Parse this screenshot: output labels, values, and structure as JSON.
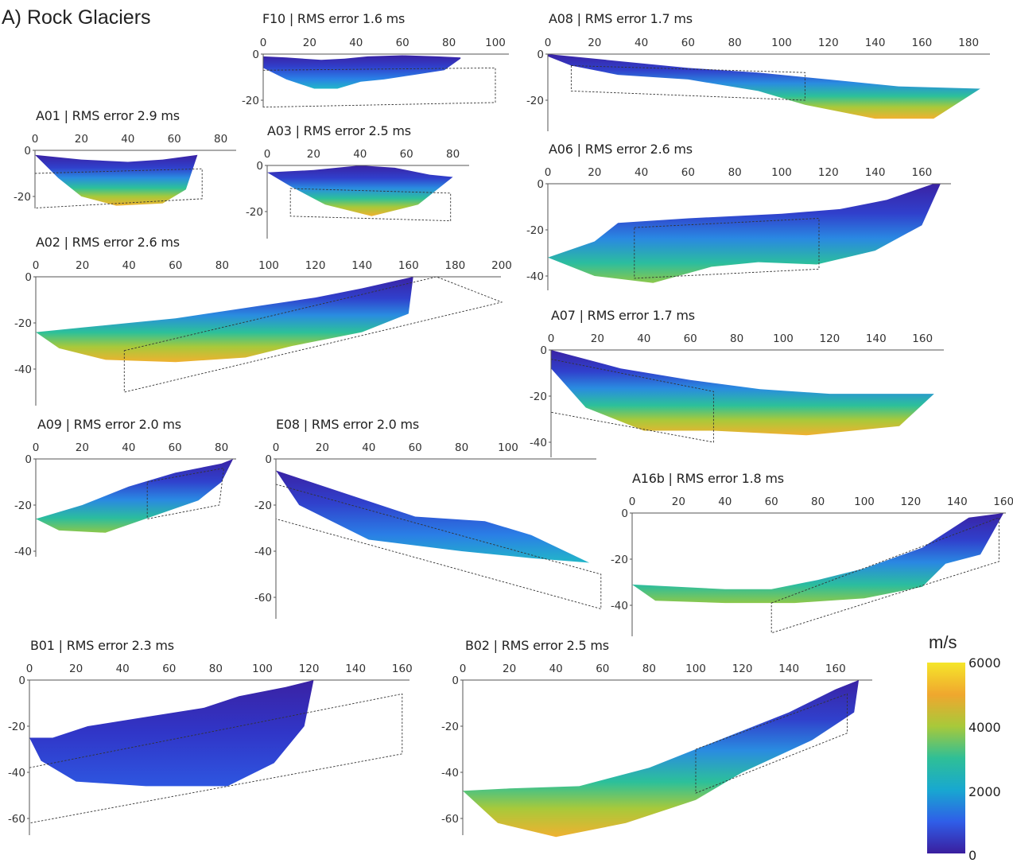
{
  "figure": {
    "title": "A) Rock Glaciers",
    "colorbar": {
      "unit": "m/s",
      "ticks": [
        "6000",
        "4000",
        "2000",
        "0"
      ],
      "min": 0,
      "max": 6000,
      "colormap": [
        "#3a1e9e",
        "#2f5ee8",
        "#18a8d0",
        "#2fbf96",
        "#a8c93a",
        "#f0a72e",
        "#f5e62a"
      ]
    }
  },
  "chart_data": [
    {
      "id": "F10",
      "type": "heatmap",
      "title": "F10 | RMS error 1.6 ms",
      "xticks": [
        "0",
        "20",
        "40",
        "60",
        "80",
        "100"
      ],
      "yticks": [
        "0",
        "-20"
      ],
      "xlim": [
        0,
        100
      ],
      "ylim": [
        -24,
        0
      ],
      "surface": [
        [
          0,
          -1
        ],
        [
          10,
          -1.5
        ],
        [
          25,
          -2.5
        ],
        [
          35,
          -2
        ],
        [
          45,
          -1
        ],
        [
          60,
          -0.5
        ],
        [
          75,
          -1
        ],
        [
          85,
          -1.5
        ]
      ],
      "bottom": [
        [
          0,
          -6
        ],
        [
          10,
          -11
        ],
        [
          22,
          -15
        ],
        [
          32,
          -15
        ],
        [
          42,
          -12
        ],
        [
          52,
          -11
        ],
        [
          65,
          -9
        ],
        [
          78,
          -7
        ],
        [
          85,
          -2
        ]
      ],
      "deep_fraction": 0.3,
      "box": [
        [
          0,
          -7
        ],
        [
          100,
          -6
        ],
        [
          100,
          -21
        ],
        [
          0,
          -23
        ]
      ]
    },
    {
      "id": "A08",
      "type": "heatmap",
      "title": "A08 | RMS error 1.7 ms",
      "xticks": [
        "0",
        "20",
        "40",
        "60",
        "80",
        "100",
        "120",
        "140",
        "160",
        "180"
      ],
      "yticks": [
        "0",
        "-20"
      ],
      "xlim": [
        0,
        190
      ],
      "ylim": [
        -30,
        0
      ],
      "surface": [
        [
          0,
          0
        ],
        [
          30,
          -3
        ],
        [
          60,
          -6
        ],
        [
          90,
          -8
        ],
        [
          120,
          -11
        ],
        [
          150,
          -14
        ],
        [
          185,
          -15
        ]
      ],
      "bottom": [
        [
          0,
          -1
        ],
        [
          10,
          -5
        ],
        [
          30,
          -9
        ],
        [
          60,
          -11
        ],
        [
          90,
          -16
        ],
        [
          110,
          -22
        ],
        [
          140,
          -28
        ],
        [
          165,
          -28
        ],
        [
          185,
          -15
        ]
      ],
      "deep_fraction": 0.8,
      "box": [
        [
          10,
          -5
        ],
        [
          110,
          -8
        ],
        [
          110,
          -20
        ],
        [
          10,
          -16
        ]
      ]
    },
    {
      "id": "A01",
      "type": "heatmap",
      "title": "A01 | RMS error 2.9 ms",
      "xticks": [
        "0",
        "20",
        "40",
        "60",
        "80"
      ],
      "yticks": [
        "0",
        "-20"
      ],
      "xlim": [
        0,
        80
      ],
      "ylim": [
        -24,
        0
      ],
      "surface": [
        [
          0,
          -2
        ],
        [
          20,
          -4
        ],
        [
          40,
          -5
        ],
        [
          55,
          -4
        ],
        [
          70,
          -2
        ]
      ],
      "bottom": [
        [
          0,
          -2
        ],
        [
          10,
          -12
        ],
        [
          20,
          -20
        ],
        [
          35,
          -24
        ],
        [
          55,
          -23
        ],
        [
          65,
          -17
        ],
        [
          70,
          -2
        ]
      ],
      "deep_fraction": 0.7,
      "box": [
        [
          0,
          -10
        ],
        [
          72,
          -8
        ],
        [
          72,
          -21
        ],
        [
          0,
          -25
        ]
      ]
    },
    {
      "id": "A03",
      "type": "heatmap",
      "title": "A03 | RMS error 2.5 ms",
      "xticks": [
        "0",
        "20",
        "40",
        "60",
        "80"
      ],
      "yticks": [
        "0",
        "-20"
      ],
      "xlim": [
        0,
        85
      ],
      "ylim": [
        -24,
        0
      ],
      "surface": [
        [
          0,
          -3
        ],
        [
          20,
          -2
        ],
        [
          40,
          0
        ],
        [
          55,
          -1
        ],
        [
          70,
          -4
        ],
        [
          80,
          -5
        ]
      ],
      "bottom": [
        [
          0,
          -3
        ],
        [
          10,
          -9
        ],
        [
          25,
          -17
        ],
        [
          45,
          -22
        ],
        [
          65,
          -17
        ],
        [
          80,
          -5
        ]
      ],
      "deep_fraction": 0.7,
      "box": [
        [
          10,
          -10
        ],
        [
          79,
          -12
        ],
        [
          79,
          -24
        ],
        [
          10,
          -22
        ]
      ]
    },
    {
      "id": "A06",
      "type": "heatmap",
      "title": "A06 | RMS error 2.6 ms",
      "xticks": [
        "0",
        "20",
        "40",
        "60",
        "80",
        "100",
        "120",
        "140",
        "160"
      ],
      "yticks": [
        "0",
        "-20",
        "-40"
      ],
      "xlim": [
        0,
        175
      ],
      "ylim": [
        -45,
        0
      ],
      "surface": [
        [
          0,
          -32
        ],
        [
          20,
          -25
        ],
        [
          30,
          -17
        ],
        [
          60,
          -15
        ],
        [
          100,
          -13
        ],
        [
          125,
          -11
        ],
        [
          145,
          -7
        ],
        [
          165,
          0
        ]
      ],
      "bottom": [
        [
          0,
          -32
        ],
        [
          20,
          -40
        ],
        [
          45,
          -43
        ],
        [
          70,
          -36
        ],
        [
          90,
          -34
        ],
        [
          115,
          -35
        ],
        [
          140,
          -29
        ],
        [
          160,
          -18
        ],
        [
          168,
          0
        ]
      ],
      "deep_fraction": 0.6,
      "box": [
        [
          37,
          -19
        ],
        [
          116,
          -15
        ],
        [
          116,
          -37
        ],
        [
          37,
          -41
        ]
      ]
    },
    {
      "id": "A02",
      "type": "heatmap",
      "title": "A02 | RMS error 2.6 ms",
      "xticks": [
        "0",
        "20",
        "40",
        "60",
        "80",
        "100",
        "120",
        "140",
        "160",
        "180",
        "200"
      ],
      "yticks": [
        "0",
        "-20",
        "-40"
      ],
      "xlim": [
        0,
        200
      ],
      "ylim": [
        -50,
        0
      ],
      "surface": [
        [
          0,
          -24
        ],
        [
          20,
          -22
        ],
        [
          40,
          -20
        ],
        [
          60,
          -18
        ],
        [
          80,
          -15
        ],
        [
          100,
          -12
        ],
        [
          120,
          -9
        ],
        [
          140,
          -5
        ],
        [
          162,
          0
        ]
      ],
      "bottom": [
        [
          0,
          -24
        ],
        [
          10,
          -31
        ],
        [
          30,
          -36
        ],
        [
          60,
          -37
        ],
        [
          90,
          -35
        ],
        [
          110,
          -30
        ],
        [
          140,
          -24
        ],
        [
          160,
          -16
        ],
        [
          162,
          0
        ]
      ],
      "deep_fraction": 0.7,
      "box": [
        [
          38,
          -32
        ],
        [
          172,
          0
        ],
        [
          200,
          -11
        ],
        [
          38,
          -50
        ]
      ]
    },
    {
      "id": "A07",
      "type": "heatmap",
      "title": "A07 | RMS error 1.7 ms",
      "xticks": [
        "0",
        "20",
        "40",
        "60",
        "80",
        "100",
        "120",
        "140",
        "160"
      ],
      "yticks": [
        "0",
        "-20",
        "-40"
      ],
      "xlim": [
        0,
        170
      ],
      "ylim": [
        -45,
        0
      ],
      "surface": [
        [
          0,
          0
        ],
        [
          30,
          -8
        ],
        [
          60,
          -13
        ],
        [
          90,
          -17
        ],
        [
          120,
          -19
        ],
        [
          150,
          -19
        ],
        [
          165,
          -19
        ]
      ],
      "bottom": [
        [
          0,
          -8
        ],
        [
          15,
          -25
        ],
        [
          40,
          -35
        ],
        [
          70,
          -35
        ],
        [
          110,
          -37
        ],
        [
          150,
          -33
        ],
        [
          165,
          -19
        ]
      ],
      "deep_fraction": 0.85,
      "box": [
        [
          0,
          -4
        ],
        [
          70,
          -18
        ],
        [
          70,
          -40
        ],
        [
          0,
          -27
        ]
      ]
    },
    {
      "id": "A09",
      "type": "heatmap",
      "title": "A09 | RMS error 2.0 ms",
      "xticks": [
        "0",
        "20",
        "40",
        "60",
        "80"
      ],
      "yticks": [
        "0",
        "-20",
        "-40"
      ],
      "xlim": [
        0,
        85
      ],
      "ylim": [
        -42,
        0
      ],
      "surface": [
        [
          0,
          -26
        ],
        [
          20,
          -20
        ],
        [
          40,
          -12
        ],
        [
          60,
          -6
        ],
        [
          80,
          -2
        ],
        [
          85,
          0
        ]
      ],
      "bottom": [
        [
          0,
          -26
        ],
        [
          10,
          -31
        ],
        [
          30,
          -32
        ],
        [
          50,
          -25
        ],
        [
          70,
          -18
        ],
        [
          80,
          -10
        ],
        [
          85,
          0
        ]
      ],
      "deep_fraction": 0.5,
      "box": [
        [
          48,
          -10
        ],
        [
          81,
          -4
        ],
        [
          79,
          -20
        ],
        [
          48,
          -26
        ]
      ]
    },
    {
      "id": "E08",
      "type": "heatmap",
      "title": "E08 | RMS error 2.0 ms",
      "xticks": [
        "0",
        "20",
        "40",
        "60",
        "80",
        "100"
      ],
      "yticks": [
        "0",
        "-20",
        "-40",
        "-60"
      ],
      "xlim": [
        0,
        140
      ],
      "ylim": [
        -65,
        0
      ],
      "surface": [
        [
          0,
          -5
        ],
        [
          30,
          -15
        ],
        [
          60,
          -25
        ],
        [
          90,
          -27
        ],
        [
          110,
          -33
        ],
        [
          135,
          -45
        ]
      ],
      "bottom": [
        [
          0,
          -5
        ],
        [
          10,
          -20
        ],
        [
          40,
          -35
        ],
        [
          80,
          -40
        ],
        [
          110,
          -43
        ],
        [
          135,
          -45
        ]
      ],
      "deep_fraction": 0.3,
      "box": [
        [
          0,
          -11
        ],
        [
          140,
          -50
        ],
        [
          140,
          -65
        ],
        [
          0,
          -26
        ]
      ]
    },
    {
      "id": "A16b",
      "type": "heatmap",
      "title": "A16b | RMS error 1.8 ms",
      "xticks": [
        "0",
        "20",
        "40",
        "60",
        "80",
        "100",
        "120",
        "140",
        "160"
      ],
      "yticks": [
        "0",
        "-20",
        "-40"
      ],
      "xlim": [
        0,
        160
      ],
      "ylim": [
        -52,
        0
      ],
      "surface": [
        [
          0,
          -31
        ],
        [
          40,
          -33
        ],
        [
          60,
          -33
        ],
        [
          80,
          -29
        ],
        [
          100,
          -24
        ],
        [
          125,
          -15
        ],
        [
          145,
          -2
        ],
        [
          160,
          0
        ]
      ],
      "bottom": [
        [
          0,
          -31
        ],
        [
          10,
          -38
        ],
        [
          40,
          -39
        ],
        [
          70,
          -39
        ],
        [
          100,
          -37
        ],
        [
          125,
          -32
        ],
        [
          135,
          -22
        ],
        [
          150,
          -18
        ],
        [
          160,
          0
        ]
      ],
      "deep_fraction": 0.65,
      "box": [
        [
          60,
          -39
        ],
        [
          158,
          -2
        ],
        [
          158,
          -21
        ],
        [
          60,
          -52
        ]
      ]
    },
    {
      "id": "B01",
      "type": "heatmap",
      "title": "B01 | RMS error 2.3 ms",
      "xticks": [
        "0",
        "20",
        "40",
        "60",
        "80",
        "100",
        "120",
        "140",
        "160"
      ],
      "yticks": [
        "0",
        "-20",
        "-40",
        "-60"
      ],
      "xlim": [
        0,
        165
      ],
      "ylim": [
        -64,
        0
      ],
      "surface": [
        [
          0,
          -25
        ],
        [
          10,
          -25
        ],
        [
          25,
          -20
        ],
        [
          50,
          -16
        ],
        [
          75,
          -12
        ],
        [
          90,
          -7
        ],
        [
          110,
          -3
        ],
        [
          122,
          0
        ]
      ],
      "bottom": [
        [
          0,
          -25
        ],
        [
          5,
          -35
        ],
        [
          20,
          -44
        ],
        [
          50,
          -46
        ],
        [
          85,
          -46
        ],
        [
          105,
          -36
        ],
        [
          118,
          -20
        ],
        [
          122,
          0
        ]
      ],
      "deep_fraction": 0.0,
      "box": [
        [
          0,
          -38
        ],
        [
          160,
          -6
        ],
        [
          160,
          -32
        ],
        [
          0,
          -62
        ]
      ]
    },
    {
      "id": "B02",
      "type": "heatmap",
      "title": "B02 | RMS error 2.5 ms",
      "xticks": [
        "0",
        "20",
        "40",
        "60",
        "80",
        "100",
        "120",
        "140",
        "160"
      ],
      "yticks": [
        "0",
        "-20",
        "-40",
        "-60"
      ],
      "xlim": [
        0,
        175
      ],
      "ylim": [
        -70,
        0
      ],
      "surface": [
        [
          0,
          -48
        ],
        [
          20,
          -47
        ],
        [
          50,
          -46
        ],
        [
          80,
          -38
        ],
        [
          110,
          -26
        ],
        [
          140,
          -14
        ],
        [
          160,
          -4
        ],
        [
          170,
          0
        ]
      ],
      "bottom": [
        [
          0,
          -48
        ],
        [
          15,
          -62
        ],
        [
          40,
          -68
        ],
        [
          70,
          -62
        ],
        [
          100,
          -52
        ],
        [
          120,
          -40
        ],
        [
          150,
          -26
        ],
        [
          168,
          -14
        ],
        [
          170,
          0
        ]
      ],
      "deep_fraction": 0.8,
      "box": [
        [
          100,
          -30
        ],
        [
          165,
          -6
        ],
        [
          165,
          -23
        ],
        [
          100,
          -49
        ]
      ]
    }
  ]
}
